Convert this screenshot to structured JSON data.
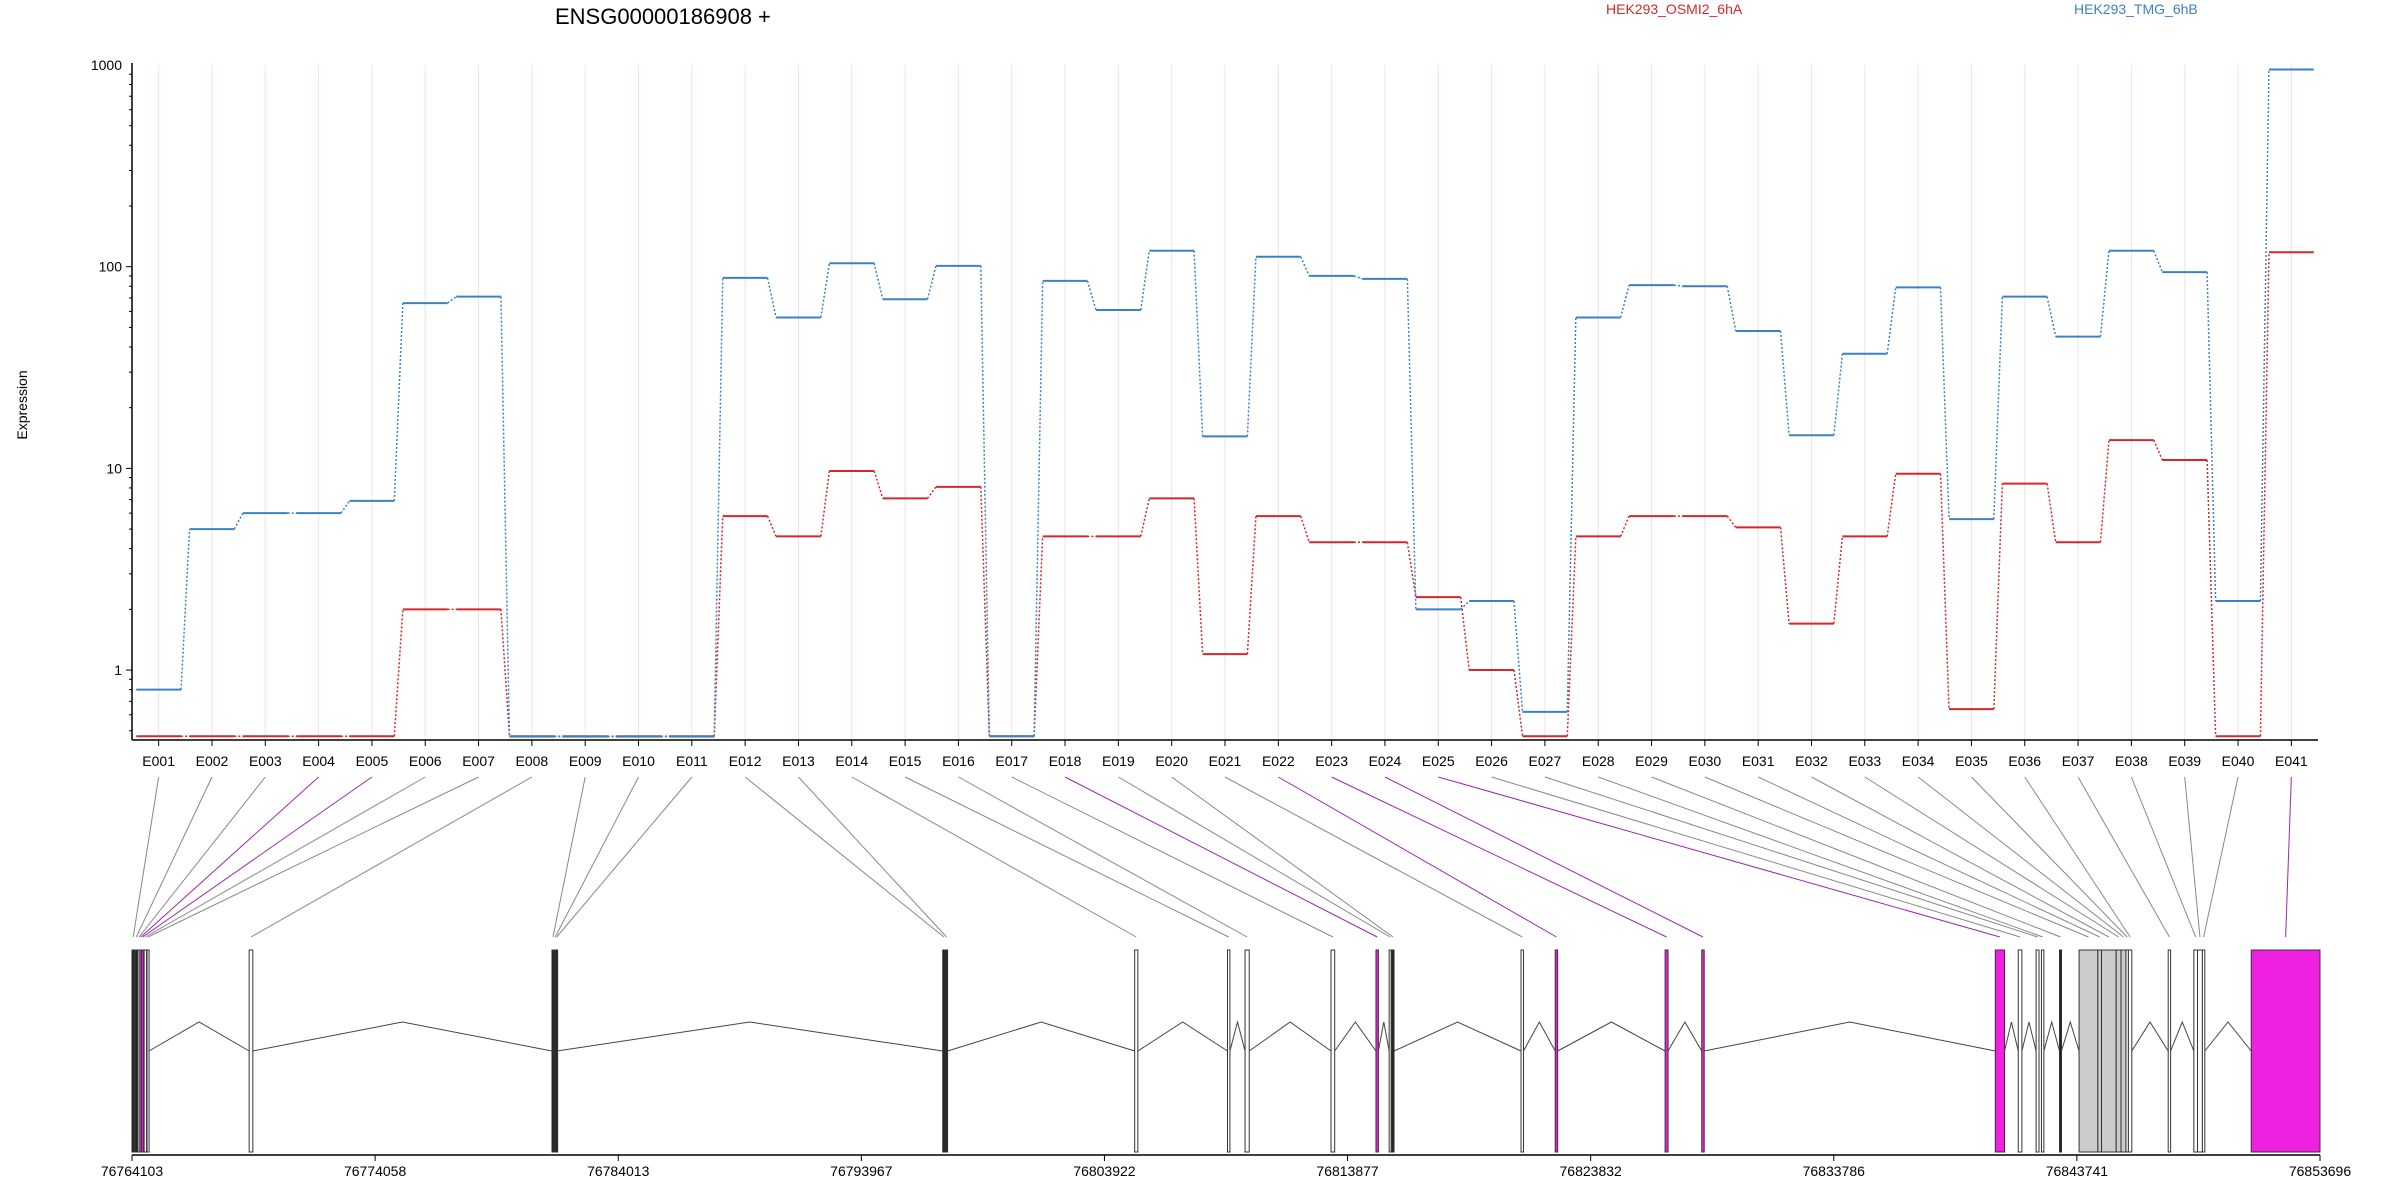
{
  "chart_data": {
    "type": "line",
    "title": "ENSG00000186908 +",
    "ylabel": "Expression",
    "xlabel": "",
    "yscale": "log",
    "ylim": [
      0.45,
      1000
    ],
    "yticks": [
      1,
      10,
      100,
      1000
    ],
    "ytick_labels": [
      "1",
      "10",
      "100",
      "1000"
    ],
    "grid": "vertical lines at exon positions",
    "legend": "top, inline labels",
    "colors": {
      "series_a": "#d62728",
      "series_b": "#3b82c4",
      "mapping_normal": "#777777",
      "mapping_highlight": "#9b27b0",
      "exon_highlight": "#f020e0",
      "exon_gray": "#cccccc"
    },
    "categories": [
      "E001",
      "E002",
      "E003",
      "E004",
      "E005",
      "E006",
      "E007",
      "E008",
      "E009",
      "E010",
      "E011",
      "E012",
      "E013",
      "E014",
      "E015",
      "E016",
      "E017",
      "E018",
      "E019",
      "E020",
      "E021",
      "E022",
      "E023",
      "E024",
      "E025",
      "E026",
      "E027",
      "E028",
      "E029",
      "E030",
      "E031",
      "E032",
      "E033",
      "E034",
      "E035",
      "E036",
      "E037",
      "E038",
      "E039",
      "E040",
      "E041"
    ],
    "series": [
      {
        "name": "HEK293_OSMI2_6hA",
        "color": "#d62728",
        "values": [
          0.47,
          0.47,
          0.47,
          0.47,
          0.47,
          2.0,
          2.0,
          0.47,
          0.47,
          0.47,
          0.47,
          5.8,
          4.6,
          9.7,
          7.1,
          8.1,
          0.47,
          4.6,
          4.6,
          7.1,
          1.2,
          5.8,
          4.3,
          4.3,
          2.3,
          1.0,
          0.47,
          4.6,
          5.8,
          5.8,
          5.1,
          1.7,
          4.6,
          9.4,
          0.64,
          8.4,
          4.3,
          13.8,
          11.0,
          0.47,
          118
        ]
      },
      {
        "name": "HEK293_TMG_6hB",
        "color": "#3b82c4",
        "values": [
          0.8,
          5.0,
          6.0,
          6.0,
          6.9,
          66,
          71,
          null,
          null,
          null,
          null,
          88,
          56,
          104,
          69,
          101,
          0.47,
          85,
          61,
          120,
          14.4,
          112,
          90,
          87,
          2.0,
          2.2,
          0.62,
          56,
          81,
          80,
          48,
          14.6,
          37,
          79,
          5.6,
          71,
          45,
          120,
          94,
          2.2,
          950
        ]
      }
    ],
    "genomic_axis": {
      "tick_labels": [
        "76764103",
        "76774058",
        "76784013",
        "76793967",
        "76803922",
        "76813877",
        "76823832",
        "76833786",
        "76843741",
        "76853696"
      ],
      "range": [
        76764103,
        76853696
      ]
    },
    "exons": [
      {
        "id": "E001",
        "start": 76764103,
        "end": 76764200,
        "style": "black"
      },
      {
        "id": "E002",
        "start": 76764230,
        "end": 76764330,
        "style": "black"
      },
      {
        "id": "E003",
        "start": 76764350,
        "end": 76764410,
        "style": "white"
      },
      {
        "id": "E004",
        "start": 76764420,
        "end": 76764480,
        "style": "magenta"
      },
      {
        "id": "E005",
        "start": 76764500,
        "end": 76764560,
        "style": "magenta"
      },
      {
        "id": "E006",
        "start": 76764600,
        "end": 76764700,
        "style": "white"
      },
      {
        "id": "E007",
        "start": 76764720,
        "end": 76764800,
        "style": "white"
      },
      {
        "id": "E008",
        "start": 76768900,
        "end": 76769050,
        "style": "white"
      },
      {
        "id": "E009",
        "start": 76781300,
        "end": 76781380,
        "style": "black"
      },
      {
        "id": "E010",
        "start": 76781390,
        "end": 76781440,
        "style": "black"
      },
      {
        "id": "E011",
        "start": 76781450,
        "end": 76781500,
        "style": "black"
      },
      {
        "id": "E012",
        "start": 76797300,
        "end": 76797400,
        "style": "black"
      },
      {
        "id": "E013",
        "start": 76797410,
        "end": 76797500,
        "style": "black"
      },
      {
        "id": "E014",
        "start": 76805160,
        "end": 76805290,
        "style": "white"
      },
      {
        "id": "E015",
        "start": 76808960,
        "end": 76809060,
        "style": "white"
      },
      {
        "id": "E016",
        "start": 76809680,
        "end": 76809850,
        "style": "white"
      },
      {
        "id": "E017",
        "start": 76813200,
        "end": 76813350,
        "style": "white"
      },
      {
        "id": "E018",
        "start": 76815040,
        "end": 76815140,
        "style": "magenta"
      },
      {
        "id": "E019",
        "start": 76815580,
        "end": 76815660,
        "style": "white"
      },
      {
        "id": "E020",
        "start": 76815690,
        "end": 76815780,
        "style": "black"
      },
      {
        "id": "E021",
        "start": 76820980,
        "end": 76821080,
        "style": "white"
      },
      {
        "id": "E022",
        "start": 76822380,
        "end": 76822480,
        "style": "magenta"
      },
      {
        "id": "E023",
        "start": 76826880,
        "end": 76827000,
        "style": "magenta"
      },
      {
        "id": "E024",
        "start": 76828380,
        "end": 76828480,
        "style": "magenta"
      },
      {
        "id": "E025",
        "start": 76840400,
        "end": 76840780,
        "style": "magenta"
      },
      {
        "id": "E026",
        "start": 76841340,
        "end": 76841490,
        "style": "white"
      },
      {
        "id": "E027",
        "start": 76842070,
        "end": 76842190,
        "style": "white"
      },
      {
        "id": "E028",
        "start": 76842290,
        "end": 76842390,
        "style": "white"
      },
      {
        "id": "E029",
        "start": 76843030,
        "end": 76843110,
        "style": "black"
      },
      {
        "id": "E030",
        "start": 76843830,
        "end": 76844600,
        "style": "gray"
      },
      {
        "id": "E031",
        "start": 76844600,
        "end": 76844750,
        "style": "gray"
      },
      {
        "id": "E032",
        "start": 76844750,
        "end": 76845350,
        "style": "gray"
      },
      {
        "id": "E033",
        "start": 76845350,
        "end": 76845550,
        "style": "gray"
      },
      {
        "id": "E034",
        "start": 76845550,
        "end": 76845750,
        "style": "gray"
      },
      {
        "id": "E035",
        "start": 76845750,
        "end": 76845850,
        "style": "white"
      },
      {
        "id": "E036",
        "start": 76845850,
        "end": 76845990,
        "style": "white"
      },
      {
        "id": "E037",
        "start": 76847480,
        "end": 76847580,
        "style": "white"
      },
      {
        "id": "E038",
        "start": 76848530,
        "end": 76848680,
        "style": "white"
      },
      {
        "id": "E039",
        "start": 76848680,
        "end": 76848880,
        "style": "white"
      },
      {
        "id": "E040",
        "start": 76848880,
        "end": 76848980,
        "style": "white"
      },
      {
        "id": "E041",
        "start": 76850880,
        "end": 76853696,
        "style": "magenta"
      }
    ]
  }
}
